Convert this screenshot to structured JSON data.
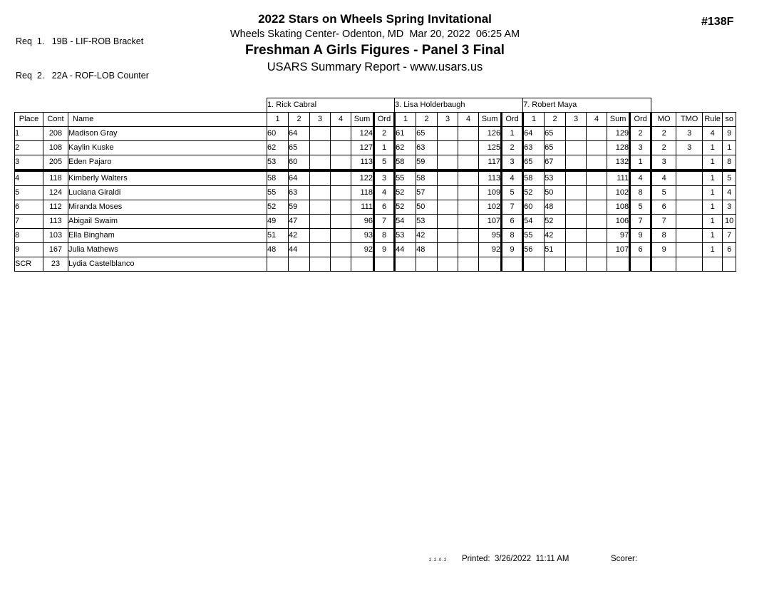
{
  "header": {
    "req_lines": [
      "Req  1.   19B - LIF-ROB Bracket",
      "Req  2.   22A - ROF-LOB Counter"
    ],
    "event_number": "#138F",
    "title": "2022 Stars on Wheels Spring Invitational",
    "venue_line": "Wheels Skating Center- Odenton, MD  Mar 20, 2022  06:25 AM",
    "event_title": "Freshman A Girls Figures - Panel 3 Final",
    "report_title": "USARS Summary Report - www.usars.us"
  },
  "table": {
    "judges": [
      "1.  Rick Cabral",
      "3.  Lisa Holderbaugh",
      "7.  Robert Maya"
    ],
    "left_headers": [
      "Place",
      "Cont",
      "Name"
    ],
    "score_headers": [
      "1",
      "2",
      "3",
      "4",
      "Sum",
      "Ord"
    ],
    "right_headers": [
      "MO",
      "TMO",
      "Rule",
      "so"
    ],
    "rows": [
      {
        "place": "1",
        "cont": "208",
        "name": "Madison Gray",
        "bold": true,
        "judges": [
          [
            "60",
            "64",
            "",
            "",
            "124",
            "2"
          ],
          [
            "61",
            "65",
            "",
            "",
            "126",
            "1"
          ],
          [
            "64",
            "65",
            "",
            "",
            "129",
            "2"
          ]
        ],
        "extras": [
          "2",
          "3",
          "4",
          "9"
        ]
      },
      {
        "place": "2",
        "cont": "108",
        "name": "Kaylin Kuske",
        "bold": true,
        "judges": [
          [
            "62",
            "65",
            "",
            "",
            "127",
            "1"
          ],
          [
            "62",
            "63",
            "",
            "",
            "125",
            "2"
          ],
          [
            "63",
            "65",
            "",
            "",
            "128",
            "3"
          ]
        ],
        "extras": [
          "2",
          "3",
          "1",
          "1"
        ]
      },
      {
        "place": "3",
        "cont": "205",
        "name": "Eden Pajaro",
        "bold": true,
        "cut": true,
        "judges": [
          [
            "53",
            "60",
            "",
            "",
            "113",
            "5"
          ],
          [
            "58",
            "59",
            "",
            "",
            "117",
            "3"
          ],
          [
            "65",
            "67",
            "",
            "",
            "132",
            "1"
          ]
        ],
        "extras": [
          "3",
          "",
          "1",
          "8"
        ]
      },
      {
        "place": "4",
        "cont": "118",
        "name": "Kimberly Walters",
        "judges": [
          [
            "58",
            "64",
            "",
            "",
            "122",
            "3"
          ],
          [
            "55",
            "58",
            "",
            "",
            "113",
            "4"
          ],
          [
            "58",
            "53",
            "",
            "",
            "111",
            "4"
          ]
        ],
        "extras": [
          "4",
          "",
          "1",
          "5"
        ]
      },
      {
        "place": "5",
        "cont": "124",
        "name": "Luciana Giraldi",
        "judges": [
          [
            "55",
            "63",
            "",
            "",
            "118",
            "4"
          ],
          [
            "52",
            "57",
            "",
            "",
            "109",
            "5"
          ],
          [
            "52",
            "50",
            "",
            "",
            "102",
            "8"
          ]
        ],
        "extras": [
          "5",
          "",
          "1",
          "4"
        ]
      },
      {
        "place": "6",
        "cont": "112",
        "name": "Miranda Moses",
        "judges": [
          [
            "52",
            "59",
            "",
            "",
            "111",
            "6"
          ],
          [
            "52",
            "50",
            "",
            "",
            "102",
            "7"
          ],
          [
            "60",
            "48",
            "",
            "",
            "108",
            "5"
          ]
        ],
        "extras": [
          "6",
          "",
          "1",
          "3"
        ]
      },
      {
        "place": "7",
        "cont": "113",
        "name": "Abigail Swaim",
        "judges": [
          [
            "49",
            "47",
            "",
            "",
            "96",
            "7"
          ],
          [
            "54",
            "53",
            "",
            "",
            "107",
            "6"
          ],
          [
            "54",
            "52",
            "",
            "",
            "106",
            "7"
          ]
        ],
        "extras": [
          "7",
          "",
          "1",
          "10"
        ]
      },
      {
        "place": "8",
        "cont": "103",
        "name": "Ella Bingham",
        "judges": [
          [
            "51",
            "42",
            "",
            "",
            "93",
            "8"
          ],
          [
            "53",
            "42",
            "",
            "",
            "95",
            "8"
          ],
          [
            "55",
            "42",
            "",
            "",
            "97",
            "9"
          ]
        ],
        "extras": [
          "8",
          "",
          "1",
          "7"
        ]
      },
      {
        "place": "9",
        "cont": "167",
        "name": "Julia Mathews",
        "judges": [
          [
            "48",
            "44",
            "",
            "",
            "92",
            "9"
          ],
          [
            "44",
            "48",
            "",
            "",
            "92",
            "9"
          ],
          [
            "56",
            "51",
            "",
            "",
            "107",
            "6"
          ]
        ],
        "extras": [
          "9",
          "",
          "1",
          "6"
        ]
      },
      {
        "place": "SCR",
        "cont": "23",
        "name": "Lydia Castelblanco",
        "judges": [
          [
            "",
            "",
            "",
            "",
            "",
            ""
          ],
          [
            "",
            "",
            "",
            "",
            "",
            ""
          ],
          [
            "",
            "",
            "",
            "",
            "",
            ""
          ]
        ],
        "extras": [
          "",
          "",
          "",
          ""
        ]
      }
    ]
  },
  "footer": {
    "version": "2.2.0.2",
    "printed_label": "Printed:  3/26/2022  11:11 AM",
    "scorer_label": "Scorer:"
  }
}
